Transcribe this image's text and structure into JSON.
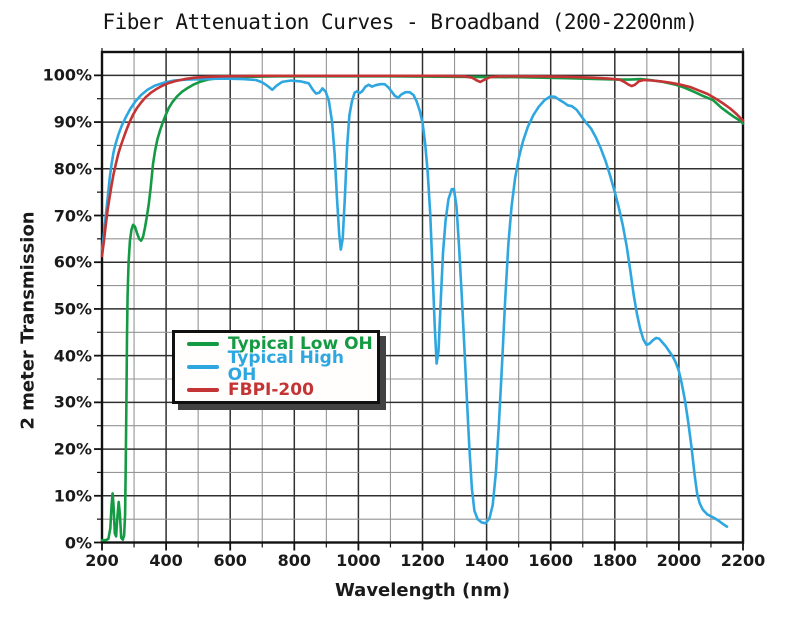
{
  "colors": {
    "low_oh_green": "#159a44",
    "high_oh_blue": "#2ea7e0",
    "fbpi_red": "#c43434",
    "grid_major": "#303030",
    "grid_minor": "#949494",
    "axis": "#111111"
  },
  "chart_data": {
    "type": "line",
    "title": "Fiber Attenuation Curves - Broadband (200-2200nm)",
    "xlabel": "Wavelength (nm)",
    "ylabel": "2 meter Transmission",
    "x_range": [
      200,
      2200
    ],
    "y_range_percent": [
      0,
      100
    ],
    "grid": "on, minor gridlines at 100 nm and 5%",
    "legend_position": "inside middle-left, white box with black border and drop shadow",
    "x_ticks": [
      {
        "v": 200,
        "label": "200"
      },
      {
        "v": 400,
        "label": "400"
      },
      {
        "v": 600,
        "label": "600"
      },
      {
        "v": 800,
        "label": "800"
      },
      {
        "v": 1000,
        "label": "1000"
      },
      {
        "v": 1200,
        "label": "1200"
      },
      {
        "v": 1400,
        "label": "1400"
      },
      {
        "v": 1600,
        "label": "1600"
      },
      {
        "v": 1800,
        "label": "1800"
      },
      {
        "v": 2000,
        "label": "2000"
      },
      {
        "v": 2200,
        "label": "2200"
      }
    ],
    "y_ticks": [
      {
        "v": 0,
        "label": "0%"
      },
      {
        "v": 10,
        "label": "10%"
      },
      {
        "v": 20,
        "label": "20%"
      },
      {
        "v": 30,
        "label": "30%"
      },
      {
        "v": 40,
        "label": "40%"
      },
      {
        "v": 50,
        "label": "50%"
      },
      {
        "v": 60,
        "label": "60%"
      },
      {
        "v": 70,
        "label": "70%"
      },
      {
        "v": 80,
        "label": "80%"
      },
      {
        "v": 90,
        "label": "90%"
      },
      {
        "v": 100,
        "label": "100%"
      }
    ],
    "x_minor_step": 100,
    "y_minor_step": 5,
    "series": [
      {
        "name": "Typical Low OH",
        "color": "#159a44",
        "points": [
          [
            200,
            0.5
          ],
          [
            212,
            0.5
          ],
          [
            220,
            0.8
          ],
          [
            226,
            3
          ],
          [
            230,
            8
          ],
          [
            233,
            10.5
          ],
          [
            236,
            8
          ],
          [
            240,
            2
          ],
          [
            244,
            1.3
          ],
          [
            248,
            5.5
          ],
          [
            252,
            8.7
          ],
          [
            256,
            6
          ],
          [
            260,
            1
          ],
          [
            265,
            0.6
          ],
          [
            269,
            1.5
          ],
          [
            272,
            6
          ],
          [
            274,
            16
          ],
          [
            276,
            30
          ],
          [
            278,
            44
          ],
          [
            280,
            53
          ],
          [
            283,
            60
          ],
          [
            287,
            64.5
          ],
          [
            292,
            67
          ],
          [
            297,
            68
          ],
          [
            303,
            67.6
          ],
          [
            309,
            66.3
          ],
          [
            316,
            65
          ],
          [
            322,
            64.6
          ],
          [
            328,
            65.4
          ],
          [
            334,
            67.3
          ],
          [
            340,
            69.8
          ],
          [
            346,
            72.5
          ],
          [
            352,
            76
          ],
          [
            359,
            81
          ],
          [
            366,
            84
          ],
          [
            373,
            86.3
          ],
          [
            381,
            88.2
          ],
          [
            389,
            89.8
          ],
          [
            398,
            91.4
          ],
          [
            408,
            93
          ],
          [
            420,
            94.3
          ],
          [
            434,
            95.5
          ],
          [
            450,
            96.5
          ],
          [
            467,
            97.3
          ],
          [
            485,
            98
          ],
          [
            505,
            98.6
          ],
          [
            530,
            99.1
          ],
          [
            560,
            99.4
          ],
          [
            600,
            99.6
          ],
          [
            660,
            99.7
          ],
          [
            750,
            99.8
          ],
          [
            900,
            99.8
          ],
          [
            1100,
            99.8
          ],
          [
            1300,
            99.7
          ],
          [
            1500,
            99.6
          ],
          [
            1650,
            99.4
          ],
          [
            1750,
            99.2
          ],
          [
            1810,
            99.1
          ],
          [
            1845,
            99.1
          ],
          [
            1880,
            99.2
          ],
          [
            1910,
            99
          ],
          [
            1950,
            98.6
          ],
          [
            1990,
            98
          ],
          [
            2020,
            97.3
          ],
          [
            2050,
            96.4
          ],
          [
            2075,
            95.6
          ],
          [
            2092,
            95.1
          ],
          [
            2106,
            94.7
          ],
          [
            2118,
            94
          ],
          [
            2132,
            93.1
          ],
          [
            2152,
            92.1
          ],
          [
            2172,
            91.1
          ],
          [
            2188,
            90.4
          ],
          [
            2200,
            89.7
          ]
        ]
      },
      {
        "name": "Typical High OH",
        "color": "#2ea7e0",
        "points": [
          [
            200,
            62.5
          ],
          [
            206,
            66
          ],
          [
            212,
            70
          ],
          [
            218,
            74
          ],
          [
            224,
            78
          ],
          [
            230,
            81
          ],
          [
            236,
            83.5
          ],
          [
            243,
            85.5
          ],
          [
            252,
            87.5
          ],
          [
            262,
            89.3
          ],
          [
            274,
            91
          ],
          [
            288,
            92.8
          ],
          [
            304,
            94.4
          ],
          [
            322,
            95.8
          ],
          [
            342,
            96.9
          ],
          [
            365,
            97.8
          ],
          [
            392,
            98.4
          ],
          [
            425,
            98.9
          ],
          [
            465,
            99.1
          ],
          [
            520,
            99.2
          ],
          [
            580,
            99.3
          ],
          [
            640,
            99.2
          ],
          [
            680,
            99
          ],
          [
            700,
            98.5
          ],
          [
            715,
            97.8
          ],
          [
            731,
            96.9
          ],
          [
            745,
            97.8
          ],
          [
            762,
            98.6
          ],
          [
            790,
            98.9
          ],
          [
            820,
            98.7
          ],
          [
            845,
            98.3
          ],
          [
            858,
            96.9
          ],
          [
            868,
            96.1
          ],
          [
            878,
            96.3
          ],
          [
            888,
            97.2
          ],
          [
            898,
            96.5
          ],
          [
            908,
            94.5
          ],
          [
            918,
            90
          ],
          [
            926,
            83
          ],
          [
            933,
            74
          ],
          [
            940,
            66
          ],
          [
            945,
            62.7
          ],
          [
            951,
            65
          ],
          [
            958,
            74
          ],
          [
            965,
            85
          ],
          [
            972,
            91.5
          ],
          [
            980,
            94.5
          ],
          [
            988,
            96.3
          ],
          [
            996,
            96.6
          ],
          [
            1004,
            96.2
          ],
          [
            1012,
            96.6
          ],
          [
            1022,
            97.6
          ],
          [
            1032,
            98
          ],
          [
            1042,
            97.6
          ],
          [
            1054,
            97.9
          ],
          [
            1068,
            98.1
          ],
          [
            1082,
            98.1
          ],
          [
            1094,
            97.4
          ],
          [
            1104,
            96.5
          ],
          [
            1114,
            95.6
          ],
          [
            1124,
            95.2
          ],
          [
            1134,
            95.9
          ],
          [
            1147,
            96.4
          ],
          [
            1160,
            96.4
          ],
          [
            1172,
            95.8
          ],
          [
            1182,
            94.4
          ],
          [
            1192,
            92.3
          ],
          [
            1200,
            89.9
          ],
          [
            1208,
            85.5
          ],
          [
            1216,
            79.5
          ],
          [
            1224,
            70.5
          ],
          [
            1231,
            59
          ],
          [
            1238,
            46.5
          ],
          [
            1244,
            38.3
          ],
          [
            1250,
            41
          ],
          [
            1257,
            52
          ],
          [
            1264,
            62
          ],
          [
            1272,
            69
          ],
          [
            1281,
            73.5
          ],
          [
            1291,
            75.6
          ],
          [
            1298,
            75.7
          ],
          [
            1306,
            72
          ],
          [
            1314,
            63.5
          ],
          [
            1322,
            53.5
          ],
          [
            1330,
            42.5
          ],
          [
            1338,
            31.5
          ],
          [
            1346,
            20.5
          ],
          [
            1354,
            11.5
          ],
          [
            1362,
            6.8
          ],
          [
            1372,
            5
          ],
          [
            1384,
            4.3
          ],
          [
            1397,
            4.1
          ],
          [
            1409,
            5.2
          ],
          [
            1419,
            8
          ],
          [
            1429,
            15
          ],
          [
            1438,
            25
          ],
          [
            1448,
            38
          ],
          [
            1458,
            52
          ],
          [
            1468,
            64
          ],
          [
            1478,
            72
          ],
          [
            1489,
            78
          ],
          [
            1501,
            82.5
          ],
          [
            1514,
            86
          ],
          [
            1529,
            89
          ],
          [
            1546,
            91.5
          ],
          [
            1563,
            93.3
          ],
          [
            1581,
            94.7
          ],
          [
            1599,
            95.5
          ],
          [
            1613,
            95.4
          ],
          [
            1626,
            94.8
          ],
          [
            1641,
            94.2
          ],
          [
            1653,
            93.6
          ],
          [
            1666,
            93.4
          ],
          [
            1681,
            92.6
          ],
          [
            1696,
            91.2
          ],
          [
            1711,
            89.8
          ],
          [
            1726,
            88.6
          ],
          [
            1741,
            86.7
          ],
          [
            1756,
            84.4
          ],
          [
            1771,
            81.7
          ],
          [
            1786,
            78.4
          ],
          [
            1801,
            74.8
          ],
          [
            1813,
            71.5
          ],
          [
            1825,
            67.9
          ],
          [
            1837,
            63.4
          ],
          [
            1849,
            57.9
          ],
          [
            1859,
            53
          ],
          [
            1869,
            49
          ],
          [
            1879,
            45.8
          ],
          [
            1889,
            43.5
          ],
          [
            1899,
            42.3
          ],
          [
            1909,
            42.6
          ],
          [
            1919,
            43.3
          ],
          [
            1929,
            43.8
          ],
          [
            1939,
            43.6
          ],
          [
            1949,
            42.8
          ],
          [
            1959,
            42
          ],
          [
            1969,
            41
          ],
          [
            1979,
            40
          ],
          [
            1989,
            38.7
          ],
          [
            1999,
            36.9
          ],
          [
            2009,
            34
          ],
          [
            2019,
            30.4
          ],
          [
            2029,
            25.8
          ],
          [
            2039,
            20.6
          ],
          [
            2049,
            14.5
          ],
          [
            2057,
            10.4
          ],
          [
            2065,
            8.4
          ],
          [
            2075,
            7
          ],
          [
            2089,
            6
          ],
          [
            2106,
            5.4
          ],
          [
            2123,
            4.7
          ],
          [
            2139,
            3.9
          ],
          [
            2150,
            3.4
          ]
        ]
      },
      {
        "name": "FBPI-200",
        "color": "#c43434",
        "points": [
          [
            200,
            61.3
          ],
          [
            206,
            64.5
          ],
          [
            212,
            68
          ],
          [
            218,
            71.5
          ],
          [
            224,
            74
          ],
          [
            230,
            76.5
          ],
          [
            236,
            78.8
          ],
          [
            243,
            81
          ],
          [
            251,
            83.2
          ],
          [
            259,
            85
          ],
          [
            267,
            86.6
          ],
          [
            276,
            88.3
          ],
          [
            286,
            90
          ],
          [
            297,
            91.6
          ],
          [
            309,
            93
          ],
          [
            322,
            94.2
          ],
          [
            336,
            95.3
          ],
          [
            351,
            96.2
          ],
          [
            368,
            97
          ],
          [
            386,
            97.7
          ],
          [
            406,
            98.3
          ],
          [
            430,
            98.8
          ],
          [
            458,
            99.2
          ],
          [
            490,
            99.5
          ],
          [
            530,
            99.7
          ],
          [
            580,
            99.8
          ],
          [
            700,
            99.9
          ],
          [
            900,
            99.9
          ],
          [
            1100,
            99.9
          ],
          [
            1250,
            99.9
          ],
          [
            1330,
            99.8
          ],
          [
            1355,
            99.5
          ],
          [
            1370,
            98.9
          ],
          [
            1380,
            98.6
          ],
          [
            1392,
            99
          ],
          [
            1410,
            99.6
          ],
          [
            1440,
            99.8
          ],
          [
            1550,
            99.8
          ],
          [
            1650,
            99.7
          ],
          [
            1730,
            99.5
          ],
          [
            1780,
            99.3
          ],
          [
            1815,
            99.1
          ],
          [
            1830,
            98.6
          ],
          [
            1843,
            98
          ],
          [
            1853,
            97.7
          ],
          [
            1863,
            98
          ],
          [
            1875,
            98.7
          ],
          [
            1890,
            99
          ],
          [
            1915,
            98.9
          ],
          [
            1945,
            98.7
          ],
          [
            1975,
            98.4
          ],
          [
            2005,
            98
          ],
          [
            2035,
            97.5
          ],
          [
            2065,
            96.7
          ],
          [
            2090,
            96
          ],
          [
            2115,
            95
          ],
          [
            2140,
            93.9
          ],
          [
            2160,
            92.9
          ],
          [
            2180,
            91.7
          ],
          [
            2200,
            90.3
          ]
        ]
      }
    ]
  }
}
